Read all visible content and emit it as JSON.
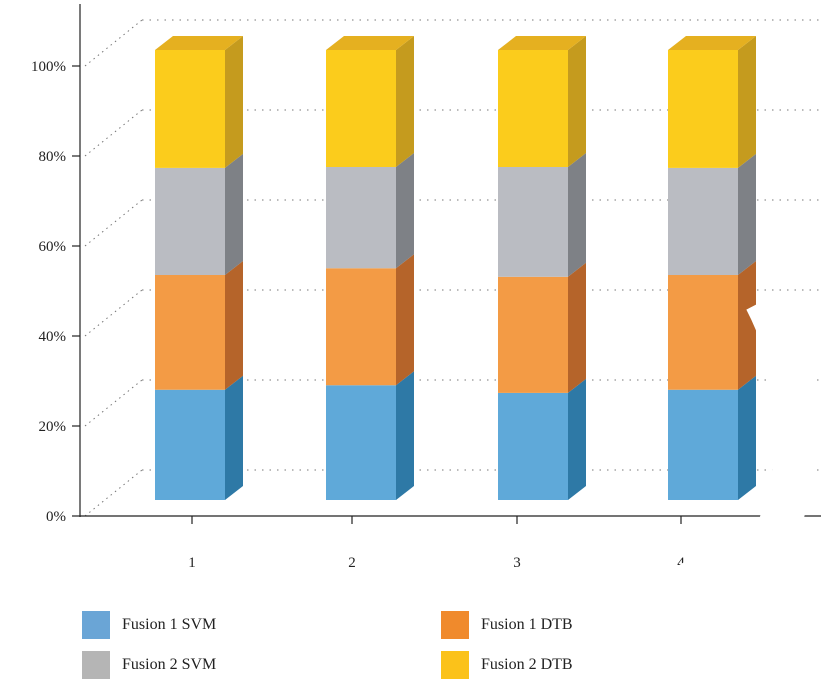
{
  "chart_data": {
    "type": "bar",
    "stacked": true,
    "normalized": true,
    "three_d": true,
    "categories": [
      "1",
      "2",
      "3",
      "4"
    ],
    "series": [
      {
        "name": "Fusion 1 SVM",
        "color": "#5fa9d9",
        "side": "#2e79a6",
        "top": "#4a8fc0",
        "values": [
          24.5,
          25.5,
          23.8,
          24.5
        ]
      },
      {
        "name": "Fusion 1 DTB",
        "color": "#f39b45",
        "side": "#b5642a",
        "top": "#d27a30",
        "values": [
          25.5,
          26.0,
          25.8,
          25.5
        ]
      },
      {
        "name": "Fusion 2 SVM",
        "color": "#babcc2",
        "side": "#7e8186",
        "top": "#9c9ea3",
        "values": [
          23.8,
          22.5,
          24.4,
          23.8
        ]
      },
      {
        "name": "Fusion 2 DTB",
        "color": "#fbcc1c",
        "side": "#c59b1e",
        "top": "#e5b020",
        "values": [
          26.2,
          26.0,
          26.0,
          26.2
        ]
      }
    ],
    "y_ticks": [
      "0%",
      "20%",
      "40%",
      "60%",
      "80%",
      "100%"
    ],
    "ylim": [
      0,
      100
    ],
    "grid": true,
    "legend_position": "bottom",
    "title": "",
    "xlabel": "",
    "ylabel": ""
  },
  "legend": {
    "items": [
      {
        "label": "Fusion 1 SVM",
        "color": "#6aa5d6"
      },
      {
        "label": "Fusion 1 DTB",
        "color": "#f08a2c"
      },
      {
        "label": "Fusion 2 SVM",
        "color": "#b5b5b5"
      },
      {
        "label": "Fusion 2 DTB",
        "color": "#fbc21a"
      }
    ]
  }
}
